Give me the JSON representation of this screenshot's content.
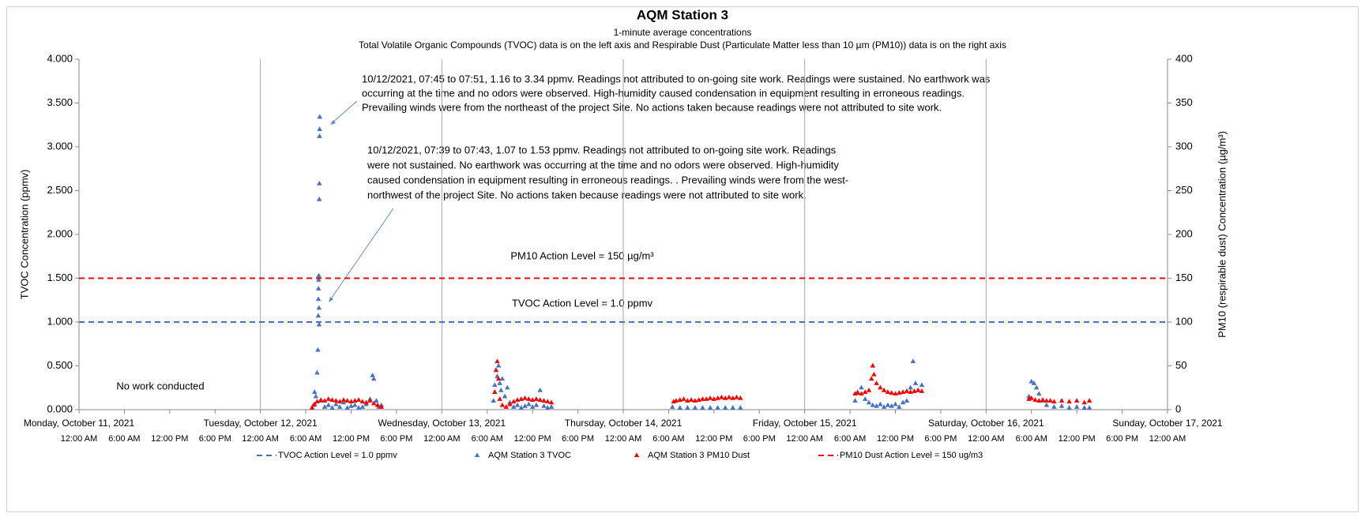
{
  "chart_data": {
    "type": "scatter",
    "title": "AQM Station 3",
    "subtitle": [
      "1-minute average concentrations",
      "Total Volatile Organic Compounds (TVOC) data is on the left axis and Respirable Dust (Particulate Matter less than 10 µm (PM10)) data is on the right axis"
    ],
    "y_label": "TVOC Concentration (ppmv)",
    "y2_label": "PM10 (respirable dust) Concentration (µg/m³)",
    "xlim": [
      "2021-10-11T00:00",
      "2021-10-17T00:00"
    ],
    "xticks": [
      {
        "value": "2021-10-11T00:00",
        "label": "12:00 AM"
      },
      {
        "value": "2021-10-11T06:00",
        "label": "6:00 AM"
      },
      {
        "value": "2021-10-11T12:00",
        "label": "12:00 PM"
      },
      {
        "value": "2021-10-11T18:00",
        "label": "6:00 PM"
      },
      {
        "value": "2021-10-12T00:00",
        "label": "12:00 AM"
      },
      {
        "value": "2021-10-12T06:00",
        "label": "6:00 AM"
      },
      {
        "value": "2021-10-12T12:00",
        "label": "12:00 PM"
      },
      {
        "value": "2021-10-12T18:00",
        "label": "6:00 PM"
      },
      {
        "value": "2021-10-13T00:00",
        "label": "12:00 AM"
      },
      {
        "value": "2021-10-13T06:00",
        "label": "6:00 AM"
      },
      {
        "value": "2021-10-13T12:00",
        "label": "12:00 PM"
      },
      {
        "value": "2021-10-13T18:00",
        "label": "6:00 PM"
      },
      {
        "value": "2021-10-14T00:00",
        "label": "12:00 AM"
      },
      {
        "value": "2021-10-14T06:00",
        "label": "6:00 AM"
      },
      {
        "value": "2021-10-14T12:00",
        "label": "12:00 PM"
      },
      {
        "value": "2021-10-14T18:00",
        "label": "6:00 PM"
      },
      {
        "value": "2021-10-15T00:00",
        "label": "12:00 AM"
      },
      {
        "value": "2021-10-15T06:00",
        "label": "6:00 AM"
      },
      {
        "value": "2021-10-15T12:00",
        "label": "12:00 PM"
      },
      {
        "value": "2021-10-15T18:00",
        "label": "6:00 PM"
      },
      {
        "value": "2021-10-16T00:00",
        "label": "12:00 AM"
      },
      {
        "value": "2021-10-16T06:00",
        "label": "6:00 AM"
      },
      {
        "value": "2021-10-16T12:00",
        "label": "12:00 PM"
      },
      {
        "value": "2021-10-16T18:00",
        "label": "6:00 PM"
      },
      {
        "value": "2021-10-17T00:00",
        "label": "12:00 AM"
      }
    ],
    "day_ticks": [
      {
        "value": "2021-10-11T00:00",
        "label": "Monday, October 11, 2021"
      },
      {
        "value": "2021-10-12T00:00",
        "label": "Tuesday, October 12, 2021"
      },
      {
        "value": "2021-10-13T00:00",
        "label": "Wednesday, October 13, 2021"
      },
      {
        "value": "2021-10-14T00:00",
        "label": "Thursday, October 14, 2021"
      },
      {
        "value": "2021-10-15T00:00",
        "label": "Friday, October 15, 2021"
      },
      {
        "value": "2021-10-16T00:00",
        "label": "Saturday, October 16, 2021"
      },
      {
        "value": "2021-10-17T00:00",
        "label": "Sunday, October 17, 2021"
      }
    ],
    "ylim": [
      0,
      4
    ],
    "yticks": [
      {
        "value": 0,
        "label": "0.000"
      },
      {
        "value": 0.5,
        "label": "0.500"
      },
      {
        "value": 1,
        "label": "1.000"
      },
      {
        "value": 1.5,
        "label": "1.500"
      },
      {
        "value": 2,
        "label": "2.000"
      },
      {
        "value": 2.5,
        "label": "2.500"
      },
      {
        "value": 3,
        "label": "3.000"
      },
      {
        "value": 3.5,
        "label": "3.500"
      },
      {
        "value": 4,
        "label": "4.000"
      }
    ],
    "y2lim": [
      0,
      400
    ],
    "y2ticks": [
      0,
      50,
      100,
      150,
      200,
      250,
      300,
      350,
      400
    ],
    "grid": "x-days",
    "series": [
      {
        "name": "TVOC Action Level = 1.0 ppmv",
        "style": "dashed-line",
        "color": "#4472c4",
        "value": 1.0
      },
      {
        "name": "AQM Station 3 TVOC",
        "style": "triangle",
        "color": "#4472c4",
        "x": [
          "2021-10-12T07:00",
          "2021-10-12T07:10",
          "2021-10-12T07:20",
          "2021-10-12T07:30",
          "2021-10-12T07:36",
          "2021-10-12T07:39",
          "2021-10-12T07:40",
          "2021-10-12T07:41",
          "2021-10-12T07:42",
          "2021-10-12T07:43",
          "2021-10-12T07:45",
          "2021-10-12T07:46",
          "2021-10-12T07:47",
          "2021-10-12T07:48",
          "2021-10-12T07:49",
          "2021-10-12T07:50",
          "2021-10-12T07:51",
          "2021-10-12T08:00",
          "2021-10-12T08:30",
          "2021-10-12T09:00",
          "2021-10-12T09:30",
          "2021-10-12T10:00",
          "2021-10-12T10:30",
          "2021-10-12T11:00",
          "2021-10-12T11:30",
          "2021-10-12T12:00",
          "2021-10-12T12:30",
          "2021-10-12T13:00",
          "2021-10-12T13:30",
          "2021-10-12T14:00",
          "2021-10-12T14:30",
          "2021-10-12T14:50",
          "2021-10-12T15:00",
          "2021-10-12T15:20",
          "2021-10-12T15:40",
          "2021-10-12T16:00",
          "2021-10-13T06:50",
          "2021-10-13T07:00",
          "2021-10-13T07:10",
          "2021-10-13T07:20",
          "2021-10-13T07:30",
          "2021-10-13T07:40",
          "2021-10-13T07:50",
          "2021-10-13T08:00",
          "2021-10-13T08:20",
          "2021-10-13T08:40",
          "2021-10-13T09:00",
          "2021-10-13T09:30",
          "2021-10-13T10:00",
          "2021-10-13T10:30",
          "2021-10-13T11:00",
          "2021-10-13T11:30",
          "2021-10-13T12:00",
          "2021-10-13T12:30",
          "2021-10-13T13:00",
          "2021-10-13T13:30",
          "2021-10-13T14:00",
          "2021-10-13T14:30",
          "2021-10-14T06:30",
          "2021-10-14T07:30",
          "2021-10-14T08:30",
          "2021-10-14T09:30",
          "2021-10-14T10:30",
          "2021-10-14T11:30",
          "2021-10-14T12:30",
          "2021-10-14T13:30",
          "2021-10-14T14:30",
          "2021-10-14T15:30",
          "2021-10-15T06:40",
          "2021-10-15T07:00",
          "2021-10-15T07:30",
          "2021-10-15T08:00",
          "2021-10-15T08:30",
          "2021-10-15T09:00",
          "2021-10-15T09:30",
          "2021-10-15T10:00",
          "2021-10-15T10:30",
          "2021-10-15T11:00",
          "2021-10-15T11:30",
          "2021-10-15T12:00",
          "2021-10-15T12:30",
          "2021-10-15T13:00",
          "2021-10-15T13:30",
          "2021-10-15T14:00",
          "2021-10-15T14:20",
          "2021-10-15T14:40",
          "2021-10-15T15:00",
          "2021-10-15T15:30",
          "2021-10-16T05:40",
          "2021-10-16T06:00",
          "2021-10-16T06:20",
          "2021-10-16T06:40",
          "2021-10-16T07:00",
          "2021-10-16T07:30",
          "2021-10-16T08:00",
          "2021-10-16T09:00",
          "2021-10-16T10:00",
          "2021-10-16T11:00",
          "2021-10-16T12:00",
          "2021-10-16T13:00",
          "2021-10-16T13:40"
        ],
        "values": [
          0.05,
          0.2,
          0.15,
          0.42,
          0.68,
          1.07,
          1.26,
          1.38,
          1.48,
          1.53,
          1.16,
          0.97,
          2.4,
          2.58,
          3.12,
          3.2,
          3.34,
          0.1,
          0.03,
          0.05,
          0.02,
          0.06,
          0.03,
          0.08,
          0.02,
          0.04,
          0.05,
          0.02,
          0.03,
          0.06,
          0.12,
          0.39,
          0.35,
          0.1,
          0.03,
          0.05,
          0.1,
          0.28,
          0.45,
          0.38,
          0.5,
          0.3,
          0.22,
          0.35,
          0.15,
          0.25,
          0.08,
          0.03,
          0.05,
          0.02,
          0.04,
          0.06,
          0.03,
          0.05,
          0.22,
          0.04,
          0.02,
          0.03,
          0.03,
          0.02,
          0.02,
          0.02,
          0.02,
          0.02,
          0.02,
          0.02,
          0.02,
          0.02,
          0.1,
          0.2,
          0.25,
          0.12,
          0.08,
          0.05,
          0.04,
          0.06,
          0.03,
          0.05,
          0.04,
          0.06,
          0.03,
          0.08,
          0.1,
          0.25,
          0.55,
          0.3,
          0.22,
          0.28,
          0.15,
          0.32,
          0.3,
          0.25,
          0.18,
          0.1,
          0.05,
          0.03,
          0.04,
          0.02,
          0.03,
          0.02,
          0.02
        ]
      },
      {
        "name": "AQM Station 3 PM10 Dust",
        "style": "triangle",
        "color": "#ff0000",
        "axis": "y2",
        "x": [
          "2021-10-12T06:50",
          "2021-10-12T07:10",
          "2021-10-12T07:30",
          "2021-10-12T08:00",
          "2021-10-12T08:30",
          "2021-10-12T09:00",
          "2021-10-12T09:30",
          "2021-10-12T10:00",
          "2021-10-12T10:30",
          "2021-10-12T11:00",
          "2021-10-12T11:30",
          "2021-10-12T12:00",
          "2021-10-12T12:30",
          "2021-10-12T13:00",
          "2021-10-12T13:30",
          "2021-10-12T14:00",
          "2021-10-12T14:30",
          "2021-10-12T15:00",
          "2021-10-12T15:30",
          "2021-10-12T16:00",
          "2021-10-13T07:00",
          "2021-10-13T07:10",
          "2021-10-13T07:20",
          "2021-10-13T07:30",
          "2021-10-13T07:40",
          "2021-10-13T08:00",
          "2021-10-13T08:30",
          "2021-10-13T09:00",
          "2021-10-13T09:30",
          "2021-10-13T10:00",
          "2021-10-13T10:30",
          "2021-10-13T11:00",
          "2021-10-13T11:30",
          "2021-10-13T12:00",
          "2021-10-13T12:30",
          "2021-10-13T13:00",
          "2021-10-13T13:30",
          "2021-10-13T14:00",
          "2021-10-13T14:30",
          "2021-10-14T06:40",
          "2021-10-14T07:00",
          "2021-10-14T07:30",
          "2021-10-14T08:00",
          "2021-10-14T08:30",
          "2021-10-14T09:00",
          "2021-10-14T09:30",
          "2021-10-14T10:00",
          "2021-10-14T10:30",
          "2021-10-14T11:00",
          "2021-10-14T11:30",
          "2021-10-14T12:00",
          "2021-10-14T12:30",
          "2021-10-14T13:00",
          "2021-10-14T13:30",
          "2021-10-14T14:00",
          "2021-10-14T14:30",
          "2021-10-14T15:00",
          "2021-10-14T15:30",
          "2021-10-15T06:40",
          "2021-10-15T07:00",
          "2021-10-15T07:30",
          "2021-10-15T08:00",
          "2021-10-15T08:30",
          "2021-10-15T08:50",
          "2021-10-15T09:00",
          "2021-10-15T09:10",
          "2021-10-15T09:30",
          "2021-10-15T10:00",
          "2021-10-15T10:30",
          "2021-10-15T11:00",
          "2021-10-15T11:30",
          "2021-10-15T12:00",
          "2021-10-15T12:30",
          "2021-10-15T13:00",
          "2021-10-15T13:30",
          "2021-10-15T14:00",
          "2021-10-15T14:30",
          "2021-10-15T15:00",
          "2021-10-15T15:30",
          "2021-10-16T05:40",
          "2021-10-16T06:00",
          "2021-10-16T06:30",
          "2021-10-16T07:00",
          "2021-10-16T07:30",
          "2021-10-16T08:00",
          "2021-10-16T08:30",
          "2021-10-16T09:00",
          "2021-10-16T10:00",
          "2021-10-16T11:00",
          "2021-10-16T12:00",
          "2021-10-16T13:00",
          "2021-10-16T13:40"
        ],
        "values": [
          2,
          6,
          9,
          11,
          10,
          12,
          11,
          10,
          9,
          11,
          10,
          9,
          10,
          11,
          9,
          8,
          10,
          7,
          5,
          3,
          20,
          45,
          55,
          35,
          12,
          5,
          3,
          6,
          9,
          11,
          12,
          13,
          12,
          11,
          12,
          11,
          10,
          9,
          8,
          9,
          10,
          11,
          12,
          10,
          11,
          10,
          11,
          12,
          12,
          13,
          12,
          13,
          14,
          13,
          14,
          13,
          14,
          13,
          18,
          19,
          18,
          20,
          22,
          35,
          50,
          40,
          30,
          25,
          22,
          20,
          19,
          18,
          19,
          20,
          21,
          20,
          21,
          22,
          21,
          12,
          13,
          11,
          10,
          11,
          10,
          10,
          9,
          10,
          9,
          10,
          8,
          10
        ]
      },
      {
        "name": "PM10 Dust Action Level = 150 ug/m3",
        "style": "dashed-line",
        "color": "#ff0000",
        "axis": "y2",
        "value": 150
      }
    ],
    "annotations": [
      {
        "text": "PM10 Action Level = 150 µg/m³"
      },
      {
        "text": "TVOC Action Level = 1.0 ppmv"
      },
      {
        "text": "No work conducted"
      }
    ],
    "callouts": [
      {
        "lines": [
          "10/12/2021, 07:45 to 07:51, 1.16 to 3.34 ppmv.  Readings not attributed to on-going site work. Readings were sustained. No earthwork was",
          "occurring at the time and no odors were observed. High-humidity caused condensation in equipment resulting in erroneous readings.",
          "Prevailing winds were from the northeast of the project Site. No actions taken because readings were not attributed to site work."
        ]
      },
      {
        "lines": [
          "10/12/2021, 07:39 to 07:43, 1.07 to 1.53 ppmv.  Readings not attributed to on-going site work. Readings",
          "were not sustained. No earthwork was occurring at the time and no odors were observed. High-humidity",
          "caused condensation in equipment resulting in erroneous readings. . Prevailing winds were from the west-",
          "northwest of the project Site. No actions taken because readings were not attributed to site work."
        ]
      }
    ]
  }
}
